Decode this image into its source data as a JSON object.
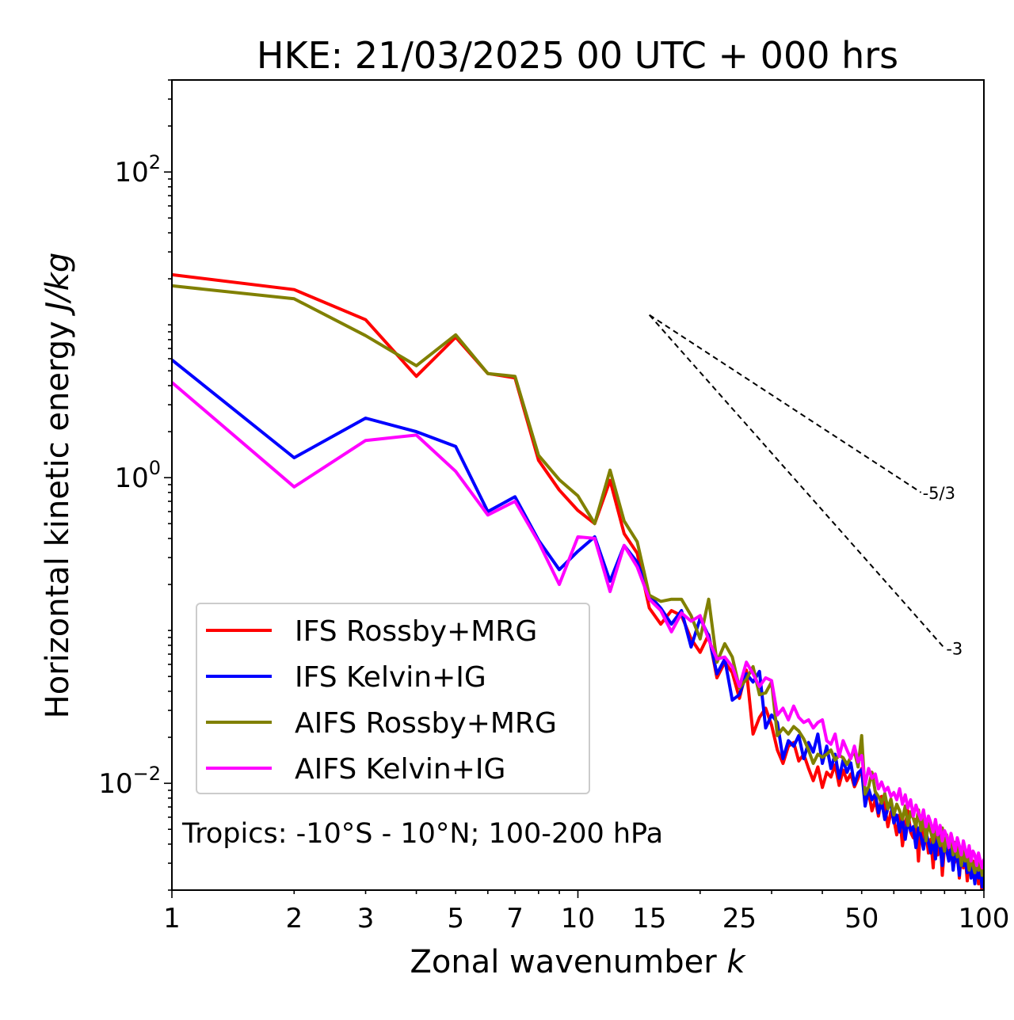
{
  "chart_data": {
    "type": "line",
    "title": "HKE: 21/03/2025 00 UTC + 000 hrs",
    "xlabel": "Zonal wavenumber",
    "xlabel_italic": "k",
    "ylabel": "Horizontal kinetic energy",
    "ylabel_italic": "J/kg",
    "xscale": "log",
    "yscale": "log",
    "xlim": [
      1,
      100
    ],
    "ylim": [
      0.002,
      400
    ],
    "xticks": [
      1,
      2,
      3,
      5,
      7,
      10,
      15,
      25,
      50,
      100
    ],
    "xtick_labels": [
      "1",
      "2",
      "3",
      "5",
      "7",
      "10",
      "15",
      "25",
      "50",
      "100"
    ],
    "yticks": [
      {
        "value": 100,
        "base": "10",
        "exp": "2"
      },
      {
        "value": 1,
        "base": "10",
        "exp": "0"
      },
      {
        "value": 0.01,
        "base": "10",
        "exp": "−2"
      }
    ],
    "grid": false,
    "legend_position": "lower-left",
    "annotation": "Tropics: -10°S - 10°N; 100-200 hPa",
    "reference_slopes": [
      {
        "label": "-5/3",
        "slope": -1.6667,
        "x": [
          15,
          70
        ],
        "y": [
          11.6,
          0.8
        ]
      },
      {
        "label": "-3",
        "slope": -3,
        "x": [
          15,
          80
        ],
        "y": [
          11.6,
          0.0765
        ]
      }
    ],
    "series": [
      {
        "name": "IFS Rossby+MRG",
        "color": "#ff0000",
        "x": [
          1,
          2,
          3,
          4,
          5,
          6,
          7,
          8,
          9,
          10,
          11,
          12,
          13,
          14,
          15,
          16,
          17,
          18,
          19,
          20,
          21,
          22,
          23,
          24,
          25,
          26,
          27,
          28,
          29,
          30,
          31,
          32,
          33,
          34,
          35,
          36,
          37,
          38,
          39,
          40,
          41,
          42,
          43,
          44,
          45,
          46,
          47,
          48,
          49,
          50,
          51,
          52,
          53,
          54,
          55,
          56,
          57,
          58,
          59,
          60,
          61,
          62,
          63,
          64,
          65,
          66,
          67,
          68,
          69,
          70,
          71,
          72,
          73,
          74,
          75,
          76,
          77,
          78,
          79,
          80,
          81,
          82,
          83,
          84,
          85,
          86,
          87,
          88,
          89,
          90,
          91,
          92,
          93,
          94,
          95,
          96,
          97,
          98,
          99,
          100
        ],
        "values": [
          21.3,
          17.0,
          10.8,
          4.6,
          8.3,
          4.8,
          4.5,
          1.3,
          0.83,
          0.61,
          0.5,
          0.96,
          0.43,
          0.32,
          0.14,
          0.11,
          0.135,
          0.125,
          0.088,
          0.072,
          0.094,
          0.049,
          0.062,
          0.053,
          0.036,
          0.055,
          0.021,
          0.027,
          0.031,
          0.024,
          0.0165,
          0.0135,
          0.0175,
          0.0185,
          0.014,
          0.0155,
          0.0125,
          0.0104,
          0.0128,
          0.0094,
          0.0118,
          0.011,
          0.0132,
          0.0097,
          0.0122,
          0.0104,
          0.0115,
          0.0095,
          0.0108,
          0.0125,
          0.0074,
          0.0087,
          0.0066,
          0.0078,
          0.0061,
          0.0082,
          0.0071,
          0.0052,
          0.0065,
          0.0058,
          0.0046,
          0.0062,
          0.0039,
          0.0054,
          0.0066,
          0.0048,
          0.0044,
          0.0058,
          0.0031,
          0.0057,
          0.0039,
          0.0047,
          0.0035,
          0.0043,
          0.0028,
          0.0052,
          0.0034,
          0.0047,
          0.0025,
          0.0039,
          0.0045,
          0.0033,
          0.0038,
          0.0029,
          0.0031,
          0.0041,
          0.0024,
          0.0036,
          0.0028,
          0.0033,
          0.0023,
          0.0034,
          0.0027,
          0.0031,
          0.0025,
          0.0029,
          0.0022,
          0.0026,
          0.0019,
          0.0023
        ]
      },
      {
        "name": "IFS Kelvin+IG",
        "color": "#0000ff",
        "x": [
          1,
          2,
          3,
          4,
          5,
          6,
          7,
          8,
          9,
          10,
          11,
          12,
          13,
          14,
          15,
          16,
          17,
          18,
          19,
          20,
          21,
          22,
          23,
          24,
          25,
          26,
          27,
          28,
          29,
          30,
          31,
          32,
          33,
          34,
          35,
          36,
          37,
          38,
          39,
          40,
          41,
          42,
          43,
          44,
          45,
          46,
          47,
          48,
          49,
          50,
          51,
          52,
          53,
          54,
          55,
          56,
          57,
          58,
          59,
          60,
          61,
          62,
          63,
          64,
          65,
          66,
          67,
          68,
          69,
          70,
          71,
          72,
          73,
          74,
          75,
          76,
          77,
          78,
          79,
          80,
          81,
          82,
          83,
          84,
          85,
          86,
          87,
          88,
          89,
          90,
          91,
          92,
          93,
          94,
          95,
          96,
          97,
          98,
          99,
          100
        ],
        "values": [
          5.9,
          1.35,
          2.45,
          2.0,
          1.6,
          0.6,
          0.75,
          0.39,
          0.25,
          0.33,
          0.41,
          0.21,
          0.36,
          0.28,
          0.17,
          0.14,
          0.11,
          0.135,
          0.078,
          0.12,
          0.092,
          0.052,
          0.065,
          0.035,
          0.038,
          0.052,
          0.046,
          0.054,
          0.023,
          0.028,
          0.025,
          0.0145,
          0.019,
          0.0175,
          0.0205,
          0.0145,
          0.0185,
          0.016,
          0.021,
          0.0135,
          0.0175,
          0.0125,
          0.0155,
          0.0108,
          0.0142,
          0.0118,
          0.0136,
          0.0098,
          0.0117,
          0.0123,
          0.0071,
          0.0092,
          0.0078,
          0.0085,
          0.0064,
          0.0076,
          0.0058,
          0.0069,
          0.0074,
          0.0055,
          0.0062,
          0.0048,
          0.0059,
          0.0043,
          0.0057,
          0.0049,
          0.0052,
          0.0038,
          0.0051,
          0.0045,
          0.0037,
          0.0048,
          0.0041,
          0.0035,
          0.0044,
          0.0032,
          0.0046,
          0.0038,
          0.0029,
          0.0042,
          0.0036,
          0.0031,
          0.0039,
          0.0027,
          0.0035,
          0.0033,
          0.0025,
          0.0037,
          0.0029,
          0.0031,
          0.0026,
          0.0034,
          0.0024,
          0.0028,
          0.0022,
          0.0031,
          0.0024,
          0.0027,
          0.0021,
          0.0025
        ]
      },
      {
        "name": "AIFS Rossby+MRG",
        "color": "#808000",
        "x": [
          1,
          2,
          3,
          4,
          5,
          6,
          7,
          8,
          9,
          10,
          11,
          12,
          13,
          14,
          15,
          16,
          17,
          18,
          19,
          20,
          21,
          22,
          23,
          24,
          25,
          26,
          27,
          28,
          29,
          30,
          31,
          32,
          33,
          34,
          35,
          36,
          37,
          38,
          39,
          40,
          41,
          42,
          43,
          44,
          45,
          46,
          47,
          48,
          49,
          50,
          51,
          52,
          53,
          54,
          55,
          56,
          57,
          58,
          59,
          60,
          61,
          62,
          63,
          64,
          65,
          66,
          67,
          68,
          69,
          70,
          71,
          72,
          73,
          74,
          75,
          76,
          77,
          78,
          79,
          80,
          81,
          82,
          83,
          84,
          85,
          86,
          87,
          88,
          89,
          90,
          91,
          92,
          93,
          94,
          95,
          96,
          97,
          98,
          99,
          100
        ],
        "values": [
          18.0,
          14.8,
          8.5,
          5.4,
          8.6,
          4.8,
          4.6,
          1.4,
          0.97,
          0.76,
          0.5,
          1.12,
          0.52,
          0.38,
          0.17,
          0.155,
          0.16,
          0.16,
          0.125,
          0.088,
          0.16,
          0.062,
          0.082,
          0.067,
          0.042,
          0.048,
          0.058,
          0.038,
          0.039,
          0.046,
          0.0205,
          0.023,
          0.021,
          0.0235,
          0.022,
          0.0195,
          0.0165,
          0.0135,
          0.0155,
          0.0148,
          0.0155,
          0.0165,
          0.0142,
          0.0152,
          0.0147,
          0.0133,
          0.0148,
          0.0162,
          0.0128,
          0.0205,
          0.0085,
          0.0095,
          0.0118,
          0.0088,
          0.0082,
          0.0074,
          0.0086,
          0.0068,
          0.0079,
          0.0062,
          0.0073,
          0.0066,
          0.0058,
          0.0071,
          0.0053,
          0.0065,
          0.0059,
          0.0052,
          0.0067,
          0.0049,
          0.0061,
          0.0042,
          0.0055,
          0.0048,
          0.0041,
          0.0057,
          0.0044,
          0.0039,
          0.0051,
          0.0036,
          0.0046,
          0.0039,
          0.0043,
          0.0034,
          0.0041,
          0.0033,
          0.0038,
          0.0029,
          0.0036,
          0.0031,
          0.0034,
          0.0027,
          0.0032,
          0.0029,
          0.0026,
          0.0033,
          0.0027,
          0.0031,
          0.0025,
          0.0029
        ]
      },
      {
        "name": "AIFS Kelvin+IG",
        "color": "#ff00ff",
        "x": [
          1,
          2,
          3,
          4,
          5,
          6,
          7,
          8,
          9,
          10,
          11,
          12,
          13,
          14,
          15,
          16,
          17,
          18,
          19,
          20,
          21,
          22,
          23,
          24,
          25,
          26,
          27,
          28,
          29,
          30,
          31,
          32,
          33,
          34,
          35,
          36,
          37,
          38,
          39,
          40,
          41,
          42,
          43,
          44,
          45,
          46,
          47,
          48,
          49,
          50,
          51,
          52,
          53,
          54,
          55,
          56,
          57,
          58,
          59,
          60,
          61,
          62,
          63,
          64,
          65,
          66,
          67,
          68,
          69,
          70,
          71,
          72,
          73,
          74,
          75,
          76,
          77,
          78,
          79,
          80,
          81,
          82,
          83,
          84,
          85,
          86,
          87,
          88,
          89,
          90,
          91,
          92,
          93,
          94,
          95,
          96,
          97,
          98,
          99,
          100
        ],
        "values": [
          4.2,
          0.87,
          1.75,
          1.9,
          1.1,
          0.57,
          0.7,
          0.38,
          0.2,
          0.41,
          0.4,
          0.18,
          0.36,
          0.26,
          0.16,
          0.135,
          0.098,
          0.13,
          0.115,
          0.125,
          0.087,
          0.065,
          0.067,
          0.058,
          0.043,
          0.062,
          0.052,
          0.043,
          0.049,
          0.047,
          0.028,
          0.031,
          0.026,
          0.032,
          0.027,
          0.025,
          0.026,
          0.023,
          0.025,
          0.026,
          0.019,
          0.018,
          0.021,
          0.015,
          0.019,
          0.0165,
          0.0145,
          0.0175,
          0.0138,
          0.0152,
          0.0098,
          0.0125,
          0.0108,
          0.0115,
          0.0092,
          0.0102,
          0.0089,
          0.0094,
          0.0082,
          0.0087,
          0.0078,
          0.0092,
          0.0073,
          0.0084,
          0.0069,
          0.0078,
          0.0061,
          0.0072,
          0.0064,
          0.0058,
          0.0067,
          0.0052,
          0.0061,
          0.0055,
          0.0048,
          0.0058,
          0.0046,
          0.0053,
          0.0042,
          0.0049,
          0.0045,
          0.0038,
          0.0047,
          0.0041,
          0.0036,
          0.0044,
          0.0039,
          0.0034,
          0.0042,
          0.0037,
          0.0033,
          0.0039,
          0.0031,
          0.0036,
          0.0034,
          0.0029,
          0.0035,
          0.0031,
          0.0028,
          0.0032
        ]
      }
    ]
  }
}
